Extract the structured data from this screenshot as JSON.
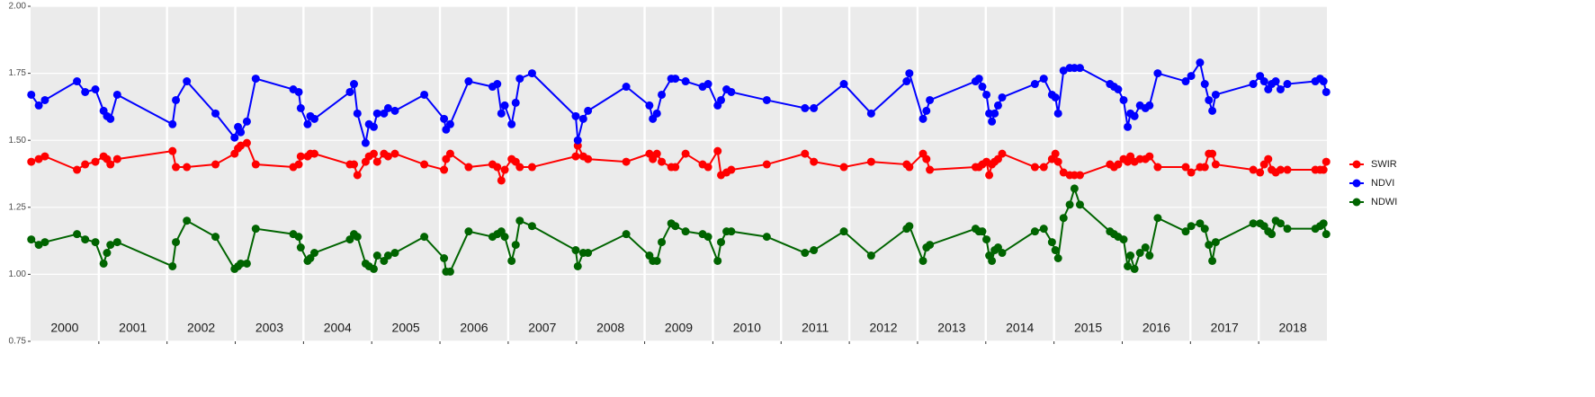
{
  "chart_data": {
    "type": "line",
    "x": [
      2000.01,
      2000.12,
      2000.21,
      2000.68,
      2000.8,
      2000.95,
      2001.07,
      2001.12,
      2001.17,
      2001.27,
      2002.08,
      2002.13,
      2002.29,
      2002.71,
      2002.99,
      2003.04,
      2003.08,
      2003.17,
      2003.3,
      2003.85,
      2003.93,
      2003.96,
      2004.06,
      2004.1,
      2004.16,
      2004.68,
      2004.74,
      2004.79,
      2004.91,
      2004.96,
      2005.03,
      2005.08,
      2005.18,
      2005.24,
      2005.34,
      2005.77,
      2006.06,
      2006.09,
      2006.15,
      2006.42,
      2006.77,
      2006.84,
      2006.9,
      2006.95,
      2007.05,
      2007.11,
      2007.17,
      2007.35,
      2007.99,
      2008.02,
      2008.1,
      2008.17,
      2008.73,
      2009.07,
      2009.12,
      2009.18,
      2009.25,
      2009.39,
      2009.45,
      2009.6,
      2009.85,
      2009.93,
      2010.07,
      2010.12,
      2010.2,
      2010.27,
      2010.79,
      2011.35,
      2011.48,
      2011.92,
      2012.32,
      2012.84,
      2012.88,
      2013.08,
      2013.13,
      2013.18,
      2013.85,
      2013.9,
      2013.95,
      2014.01,
      2014.05,
      2014.09,
      2014.13,
      2014.18,
      2014.24,
      2014.72,
      2014.85,
      2014.97,
      2015.02,
      2015.06,
      2015.14,
      2015.23,
      2015.3,
      2015.38,
      2015.82,
      2015.88,
      2015.94,
      2016.02,
      2016.08,
      2016.12,
      2016.18,
      2016.26,
      2016.34,
      2016.4,
      2016.52,
      2016.93,
      2017.01,
      2017.14,
      2017.21,
      2017.27,
      2017.32,
      2017.37,
      2017.92,
      2018.02,
      2018.08,
      2018.14,
      2018.19,
      2018.25,
      2018.32,
      2018.42,
      2018.83,
      2018.9,
      2018.95,
      2018.99
    ],
    "series": [
      {
        "name": "SWIR",
        "color": "#ff0000",
        "values": [
          1.42,
          1.43,
          1.44,
          1.39,
          1.41,
          1.42,
          1.44,
          1.43,
          1.41,
          1.43,
          1.46,
          1.4,
          1.4,
          1.41,
          1.45,
          1.47,
          1.48,
          1.49,
          1.41,
          1.4,
          1.41,
          1.44,
          1.44,
          1.45,
          1.45,
          1.41,
          1.41,
          1.37,
          1.42,
          1.44,
          1.45,
          1.42,
          1.45,
          1.44,
          1.45,
          1.41,
          1.39,
          1.43,
          1.45,
          1.4,
          1.41,
          1.4,
          1.35,
          1.39,
          1.43,
          1.42,
          1.4,
          1.4,
          1.44,
          1.48,
          1.44,
          1.43,
          1.42,
          1.45,
          1.43,
          1.45,
          1.42,
          1.4,
          1.4,
          1.45,
          1.41,
          1.4,
          1.46,
          1.37,
          1.38,
          1.39,
          1.41,
          1.45,
          1.42,
          1.4,
          1.42,
          1.41,
          1.4,
          1.45,
          1.43,
          1.39,
          1.4,
          1.4,
          1.41,
          1.42,
          1.37,
          1.41,
          1.42,
          1.43,
          1.45,
          1.4,
          1.4,
          1.43,
          1.45,
          1.42,
          1.38,
          1.37,
          1.37,
          1.37,
          1.41,
          1.4,
          1.41,
          1.43,
          1.42,
          1.44,
          1.42,
          1.43,
          1.43,
          1.44,
          1.4,
          1.4,
          1.38,
          1.4,
          1.4,
          1.45,
          1.45,
          1.41,
          1.39,
          1.38,
          1.41,
          1.43,
          1.39,
          1.38,
          1.39,
          1.39,
          1.39,
          1.39,
          1.39,
          1.42
        ]
      },
      {
        "name": "NDVI",
        "color": "#0000ff",
        "values": [
          1.67,
          1.63,
          1.65,
          1.72,
          1.68,
          1.69,
          1.61,
          1.59,
          1.58,
          1.67,
          1.56,
          1.65,
          1.72,
          1.6,
          1.51,
          1.55,
          1.53,
          1.57,
          1.73,
          1.69,
          1.68,
          1.62,
          1.56,
          1.59,
          1.58,
          1.68,
          1.71,
          1.6,
          1.49,
          1.56,
          1.55,
          1.6,
          1.6,
          1.62,
          1.61,
          1.67,
          1.58,
          1.54,
          1.56,
          1.72,
          1.7,
          1.71,
          1.6,
          1.63,
          1.56,
          1.64,
          1.73,
          1.75,
          1.59,
          1.5,
          1.58,
          1.61,
          1.7,
          1.63,
          1.58,
          1.6,
          1.67,
          1.73,
          1.73,
          1.72,
          1.7,
          1.71,
          1.63,
          1.65,
          1.69,
          1.68,
          1.65,
          1.62,
          1.62,
          1.71,
          1.6,
          1.72,
          1.75,
          1.58,
          1.61,
          1.65,
          1.72,
          1.73,
          1.7,
          1.67,
          1.6,
          1.57,
          1.6,
          1.63,
          1.66,
          1.71,
          1.73,
          1.67,
          1.66,
          1.6,
          1.76,
          1.77,
          1.77,
          1.77,
          1.71,
          1.7,
          1.69,
          1.65,
          1.55,
          1.6,
          1.59,
          1.63,
          1.62,
          1.63,
          1.75,
          1.72,
          1.74,
          1.79,
          1.71,
          1.65,
          1.61,
          1.67,
          1.71,
          1.74,
          1.72,
          1.69,
          1.71,
          1.72,
          1.69,
          1.71,
          1.72,
          1.73,
          1.72,
          1.68
        ]
      },
      {
        "name": "NDWI",
        "color": "#006400",
        "values": [
          1.13,
          1.11,
          1.12,
          1.15,
          1.13,
          1.12,
          1.04,
          1.08,
          1.11,
          1.12,
          1.03,
          1.12,
          1.2,
          1.14,
          1.02,
          1.03,
          1.04,
          1.04,
          1.17,
          1.15,
          1.14,
          1.1,
          1.05,
          1.06,
          1.08,
          1.13,
          1.15,
          1.14,
          1.04,
          1.03,
          1.02,
          1.07,
          1.05,
          1.07,
          1.08,
          1.14,
          1.06,
          1.01,
          1.01,
          1.16,
          1.14,
          1.15,
          1.16,
          1.14,
          1.05,
          1.11,
          1.2,
          1.18,
          1.09,
          1.03,
          1.08,
          1.08,
          1.15,
          1.07,
          1.05,
          1.05,
          1.12,
          1.19,
          1.18,
          1.16,
          1.15,
          1.14,
          1.05,
          1.12,
          1.16,
          1.16,
          1.14,
          1.08,
          1.09,
          1.16,
          1.07,
          1.17,
          1.18,
          1.05,
          1.1,
          1.11,
          1.17,
          1.16,
          1.16,
          1.13,
          1.07,
          1.05,
          1.09,
          1.1,
          1.08,
          1.16,
          1.17,
          1.12,
          1.09,
          1.06,
          1.21,
          1.26,
          1.32,
          1.26,
          1.16,
          1.15,
          1.14,
          1.13,
          1.03,
          1.07,
          1.02,
          1.08,
          1.1,
          1.07,
          1.21,
          1.16,
          1.18,
          1.19,
          1.17,
          1.11,
          1.05,
          1.12,
          1.19,
          1.19,
          1.18,
          1.16,
          1.15,
          1.2,
          1.19,
          1.17,
          1.17,
          1.18,
          1.19,
          1.15
        ]
      }
    ],
    "xlim": [
      2000,
      2019
    ],
    "xticks": [
      2001,
      2002,
      2003,
      2004,
      2005,
      2006,
      2007,
      2008,
      2009,
      2010,
      2011,
      2012,
      2013,
      2014,
      2015,
      2016,
      2017,
      2018
    ],
    "year_labels": [
      {
        "value": 2000.5,
        "label": "2000"
      },
      {
        "value": 2001.5,
        "label": "2001"
      },
      {
        "value": 2002.5,
        "label": "2002"
      },
      {
        "value": 2003.5,
        "label": "2003"
      },
      {
        "value": 2004.5,
        "label": "2004"
      },
      {
        "value": 2005.5,
        "label": "2005"
      },
      {
        "value": 2006.5,
        "label": "2006"
      },
      {
        "value": 2007.5,
        "label": "2007"
      },
      {
        "value": 2008.5,
        "label": "2008"
      },
      {
        "value": 2009.5,
        "label": "2009"
      },
      {
        "value": 2010.5,
        "label": "2010"
      },
      {
        "value": 2011.5,
        "label": "2011"
      },
      {
        "value": 2012.5,
        "label": "2012"
      },
      {
        "value": 2013.5,
        "label": "2013"
      },
      {
        "value": 2014.5,
        "label": "2014"
      },
      {
        "value": 2015.5,
        "label": "2015"
      },
      {
        "value": 2016.5,
        "label": "2016"
      },
      {
        "value": 2017.5,
        "label": "2017"
      },
      {
        "value": 2018.5,
        "label": "2018"
      }
    ],
    "ylim": [
      0.75,
      2.0
    ],
    "yticks": [
      {
        "value": 0.75,
        "label": "0.75"
      },
      {
        "value": 1.0,
        "label": "1.00"
      },
      {
        "value": 1.25,
        "label": "1.25"
      },
      {
        "value": 1.5,
        "label": "1.50"
      },
      {
        "value": 1.75,
        "label": "1.75"
      },
      {
        "value": 2.0,
        "label": "2.00"
      }
    ],
    "grid": true,
    "legend": "right"
  }
}
